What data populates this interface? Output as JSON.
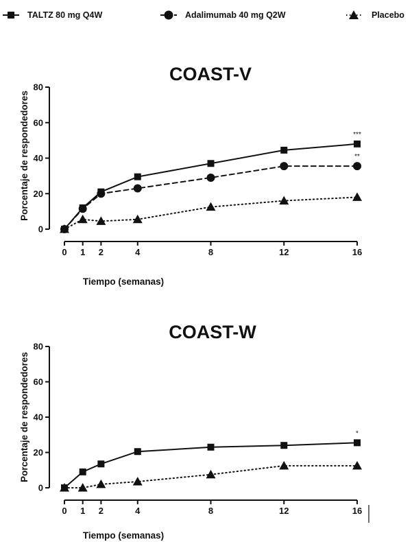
{
  "legend": [
    {
      "label": "TALTZ 80 mg Q4W",
      "marker": "square",
      "line": "solid"
    },
    {
      "label": "Adalimumab 40 mg Q2W",
      "marker": "circle",
      "line": "dashed"
    },
    {
      "label": "Placebo",
      "marker": "triangle",
      "line": "dotted"
    }
  ],
  "chart_data": [
    {
      "type": "line",
      "title": "COAST-V",
      "xlabel": "Tiempo (semanas)",
      "ylabel": "Porcentaje de respondedores",
      "x": [
        0,
        1,
        2,
        4,
        8,
        12,
        16
      ],
      "xticks": [
        "0",
        "1",
        "2",
        "4",
        "8",
        "12",
        "16"
      ],
      "yticks": [
        "0",
        "20",
        "40",
        "60",
        "80"
      ],
      "ylim": [
        0,
        80
      ],
      "series": [
        {
          "name": "TALTZ 80 mg Q4W",
          "marker": "square",
          "line": "solid",
          "values": [
            0,
            12,
            21,
            29.5,
            37,
            44.5,
            48
          ]
        },
        {
          "name": "Adalimumab 40 mg Q2W",
          "marker": "circle",
          "line": "dashed",
          "values": [
            0,
            11.5,
            20,
            23,
            29,
            35.5,
            35.5
          ]
        },
        {
          "name": "Placebo",
          "marker": "triangle",
          "line": "dotted",
          "values": [
            0,
            5.5,
            4.5,
            5.5,
            12.5,
            16,
            18
          ]
        }
      ],
      "annotations": [
        {
          "text": "***",
          "x": 16,
          "y": 48
        },
        {
          "text": "**",
          "x": 16,
          "y": 35.5
        }
      ]
    },
    {
      "type": "line",
      "title": "COAST-W",
      "xlabel": "Tiempo (semanas)",
      "ylabel": "Porcentaje de respondedores",
      "x": [
        0,
        1,
        2,
        4,
        8,
        12,
        16
      ],
      "xticks": [
        "0",
        "1",
        "2",
        "4",
        "8",
        "12",
        "16"
      ],
      "yticks": [
        "0",
        "20",
        "40",
        "60",
        "80"
      ],
      "ylim": [
        0,
        80
      ],
      "series": [
        {
          "name": "TALTZ 80 mg Q4W",
          "marker": "square",
          "line": "solid",
          "values": [
            0,
            9,
            13.5,
            20.5,
            23,
            24,
            25.5
          ]
        },
        {
          "name": "Placebo",
          "marker": "triangle",
          "line": "dotted",
          "values": [
            0,
            0,
            2,
            3.5,
            7.5,
            12.5,
            12.5
          ]
        }
      ],
      "annotations": [
        {
          "text": "*",
          "x": 16,
          "y": 25.5
        }
      ]
    }
  ]
}
